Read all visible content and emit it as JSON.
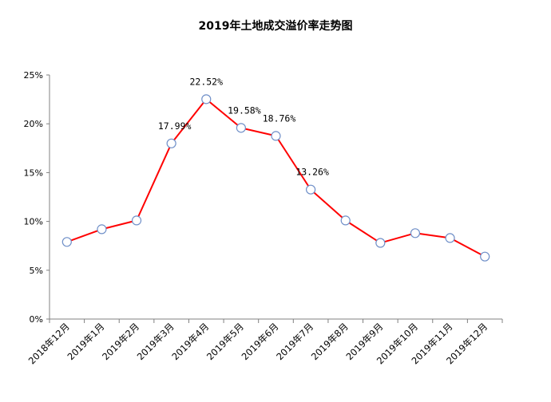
{
  "chart_data": {
    "type": "line",
    "title": "2019年土地成交溢价率走势图",
    "xlabel": "",
    "ylabel": "",
    "categories": [
      "2018年12月",
      "2019年1月",
      "2019年2月",
      "2019年3月",
      "2019年4月",
      "2019年5月",
      "2019年6月",
      "2019年7月",
      "2019年8月",
      "2019年9月",
      "2019年10月",
      "2019年11月",
      "2019年12月"
    ],
    "series": [
      {
        "values": [
          7.9,
          9.2,
          10.1,
          17.99,
          22.52,
          19.58,
          18.76,
          13.26,
          10.1,
          7.8,
          8.8,
          8.3,
          6.4
        ],
        "data_labels": [
          null,
          null,
          null,
          "17.99%",
          "22.52%",
          "19.58%",
          "18.76%",
          "13.26%",
          null,
          null,
          null,
          null,
          null
        ]
      }
    ],
    "ylim": [
      0,
      25
    ],
    "yticks": [
      0,
      5,
      10,
      15,
      20,
      25
    ],
    "ytick_labels": [
      "0%",
      "5%",
      "10%",
      "15%",
      "20%",
      "25%"
    ],
    "line_color": "#ff0000",
    "marker": "open-circle",
    "marker_edge_color": "#6f8fc8",
    "grid": false,
    "legend": "none"
  }
}
